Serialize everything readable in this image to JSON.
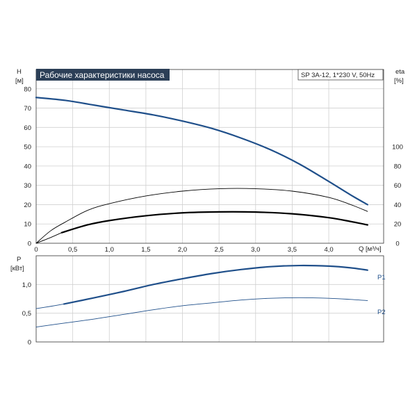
{
  "chart_data": {
    "type": "line",
    "title": "Рабочие характеристики насоса",
    "subtitle": "SP 3A-12, 1*230 V, 50Hz",
    "colors": {
      "title_bg": "#2c3f57",
      "title_fg": "#ffffff",
      "curve_blue": "#1f4f8a",
      "curve_black": "#000000",
      "grid": "#d0d0d0",
      "frame": "#333333"
    },
    "x_axis": {
      "label": "Q [м³/ч]",
      "range": [
        0,
        4.75
      ],
      "ticks": [
        0,
        0.5,
        1.0,
        1.5,
        2.0,
        2.5,
        3.0,
        3.5,
        4.0
      ],
      "tick_labels": [
        "0",
        "0,5",
        "1,0",
        "1,5",
        "2,0",
        "2,5",
        "3,0",
        "3,5",
        "4,0"
      ]
    },
    "upper_panel": {
      "y_left": {
        "label_line1": "H",
        "label_line2": "[м]",
        "range": [
          0,
          90
        ],
        "ticks": [
          0,
          10,
          20,
          30,
          40,
          50,
          60,
          70,
          80
        ],
        "tick_labels": [
          "0",
          "10",
          "20",
          "30",
          "40",
          "50",
          "60",
          "70",
          "80"
        ]
      },
      "y_right": {
        "label_line1": "eta",
        "label_line2": "[%]",
        "range": [
          0,
          180
        ],
        "ticks": [
          0,
          20,
          40,
          60,
          80,
          100
        ],
        "tick_labels": [
          "0",
          "20",
          "40",
          "60",
          "80",
          "100"
        ]
      },
      "series": [
        {
          "axis": "left",
          "color": "curve_blue",
          "width": 2.2,
          "x": [
            0.0,
            0.4,
            0.8,
            1.2,
            1.6,
            2.0,
            2.4,
            2.8,
            3.2,
            3.6,
            4.0,
            4.3,
            4.53
          ],
          "y": [
            75.5,
            74,
            71.5,
            69,
            66.5,
            63.3,
            59.5,
            54.5,
            48.5,
            41,
            32,
            25,
            20
          ]
        },
        {
          "axis": "right",
          "color": "curve_black",
          "width": 0.9,
          "x": [
            0.0,
            0.2,
            0.4,
            0.7,
            1.0,
            1.5,
            2.0,
            2.5,
            3.0,
            3.5,
            4.0,
            4.3,
            4.53
          ],
          "y": [
            0,
            13,
            22,
            34,
            41,
            49,
            54,
            56.5,
            56.5,
            54,
            47.5,
            40,
            33
          ]
        },
        {
          "axis": "right",
          "color": "curve_black",
          "width": 0.9,
          "x": [
            0.0,
            0.2,
            0.35
          ],
          "y": [
            0,
            6,
            11
          ]
        },
        {
          "axis": "right",
          "color": "curve_black",
          "width": 2.2,
          "x": [
            0.35,
            0.7,
            1.0,
            1.5,
            2.0,
            2.5,
            3.0,
            3.5,
            4.0,
            4.3,
            4.53
          ],
          "y": [
            11,
            19,
            23.5,
            28.5,
            31.5,
            32.5,
            32.3,
            30.5,
            26.5,
            22.5,
            19
          ]
        }
      ]
    },
    "lower_panel": {
      "y_left": {
        "label_line1": "P",
        "label_line2": "[кВт]",
        "range": [
          0,
          1.5
        ],
        "ticks": [
          0,
          0.5,
          1.0
        ],
        "tick_labels": [
          "0",
          "0,5",
          "1,0"
        ]
      },
      "series": [
        {
          "name": "P1",
          "color": "curve_blue",
          "width": 0.9,
          "x": [
            0.0,
            0.2,
            0.38
          ],
          "y": [
            0.58,
            0.62,
            0.66
          ]
        },
        {
          "name": "P1",
          "color": "curve_blue",
          "width": 2.2,
          "label": "P1",
          "x": [
            0.38,
            0.8,
            1.2,
            1.6,
            2.0,
            2.4,
            2.8,
            3.2,
            3.6,
            4.0,
            4.3,
            4.53
          ],
          "y": [
            0.66,
            0.77,
            0.88,
            1.0,
            1.1,
            1.19,
            1.26,
            1.31,
            1.33,
            1.32,
            1.29,
            1.25
          ]
        },
        {
          "name": "P2",
          "color": "curve_blue",
          "width": 0.9,
          "label": "P2",
          "x": [
            0.0,
            0.4,
            0.8,
            1.2,
            1.6,
            2.0,
            2.4,
            2.8,
            3.2,
            3.6,
            4.0,
            4.3,
            4.53
          ],
          "y": [
            0.26,
            0.33,
            0.4,
            0.48,
            0.56,
            0.63,
            0.68,
            0.73,
            0.76,
            0.77,
            0.76,
            0.74,
            0.72
          ]
        }
      ]
    },
    "grid": true
  }
}
